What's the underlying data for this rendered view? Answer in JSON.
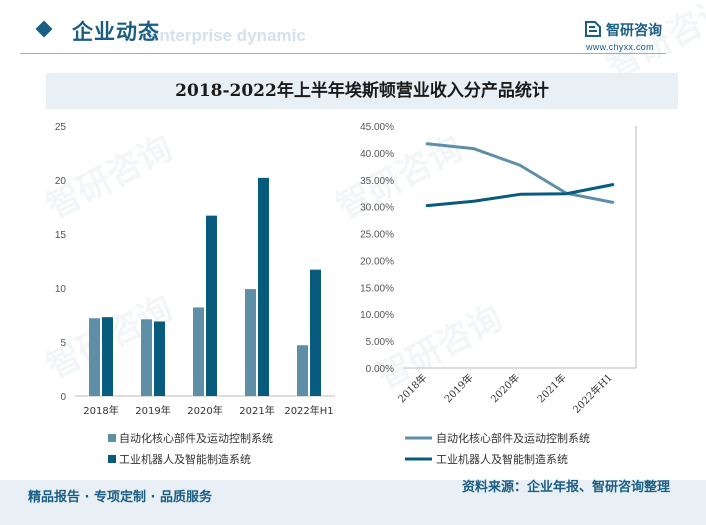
{
  "header": {
    "section_title": "企业动态",
    "bg_english": "Enterprise dynamic",
    "logo_name": "智研咨询",
    "logo_url": "www.chyxx.com"
  },
  "watermark_text": "智研咨询",
  "colors": {
    "series1": "#5e8fa7",
    "series2": "#085b7d",
    "accent": "#1b5e84",
    "title_band": "#e8f0f6"
  },
  "chart_data": [
    {
      "type": "bar",
      "title": "2018-2022年上半年埃斯顿营业收入分产品统计",
      "categories": [
        "2018年",
        "2019年",
        "2020年",
        "2021年",
        "2022年H1"
      ],
      "ylim": [
        0,
        25
      ],
      "yticks": [
        "0",
        "5",
        "10",
        "15",
        "20",
        "25"
      ],
      "series": [
        {
          "name": "自动化核心部件及运动控制系统",
          "values": [
            7.2,
            7.1,
            8.2,
            9.9,
            4.7
          ]
        },
        {
          "name": "工业机器人及智能制造系统",
          "values": [
            7.3,
            6.9,
            16.7,
            20.2,
            11.7
          ]
        }
      ]
    },
    {
      "type": "line",
      "categories": [
        "2018年",
        "2019年",
        "2020年",
        "2021年",
        "2022年H1"
      ],
      "ylim": [
        0,
        45
      ],
      "yticks": [
        "0.00%",
        "5.00%",
        "10.00%",
        "15.00%",
        "20.00%",
        "25.00%",
        "30.00%",
        "35.00%",
        "40.00%",
        "45.00%"
      ],
      "series": [
        {
          "name": "自动化核心部件及运动控制系统",
          "values": [
            41.7,
            40.8,
            37.7,
            32.5,
            30.8
          ]
        },
        {
          "name": "工业机器人及智能制造系统",
          "values": [
            30.2,
            31.0,
            32.3,
            32.4,
            34.1
          ]
        }
      ]
    }
  ],
  "footer": {
    "left": "精品报告 · 专项定制 · 品质服务",
    "right": "资料来源：企业年报、智研咨询整理"
  }
}
